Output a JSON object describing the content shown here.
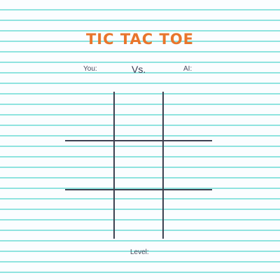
{
  "game": {
    "title": "TIC TAC TOE",
    "vs": "Vs.",
    "level_label": "Level:"
  },
  "players": {
    "you_label": "You:",
    "ai_label": "AI:"
  },
  "board": {
    "cells": [
      "",
      "",
      "",
      "",
      "",
      "",
      "",
      "",
      ""
    ]
  },
  "colors": {
    "title": "#e8752c",
    "ruled_lines": "#8fe3df",
    "grid": "#3d4150",
    "background": "#fbfdff"
  }
}
